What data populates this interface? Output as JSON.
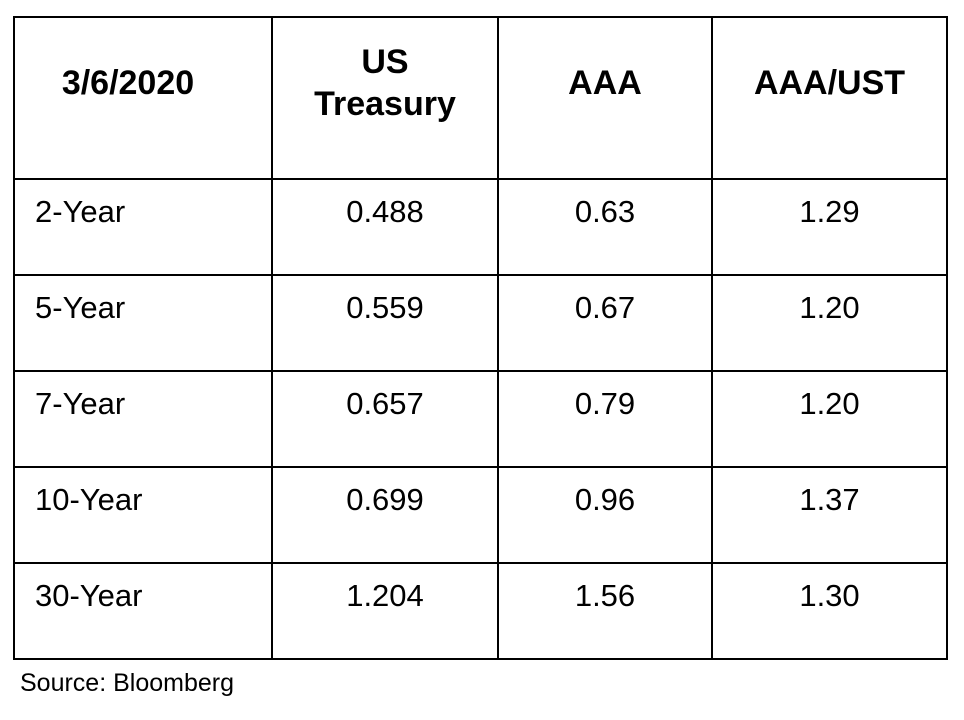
{
  "table": {
    "headers": [
      "3/6/2020",
      "US Treasury",
      "AAA",
      "AAA/UST"
    ],
    "rows": [
      {
        "term": "2-Year",
        "us_treasury": "0.488",
        "aaa": "0.63",
        "aaa_ust": "1.29"
      },
      {
        "term": "5-Year",
        "us_treasury": "0.559",
        "aaa": "0.67",
        "aaa_ust": "1.20"
      },
      {
        "term": "7-Year",
        "us_treasury": "0.657",
        "aaa": "0.79",
        "aaa_ust": "1.20"
      },
      {
        "term": "10-Year",
        "us_treasury": "0.699",
        "aaa": "0.96",
        "aaa_ust": "1.37"
      },
      {
        "term": "30-Year",
        "us_treasury": "1.204",
        "aaa": "1.56",
        "aaa_ust": "1.30"
      }
    ]
  },
  "source": "Source: Bloomberg"
}
